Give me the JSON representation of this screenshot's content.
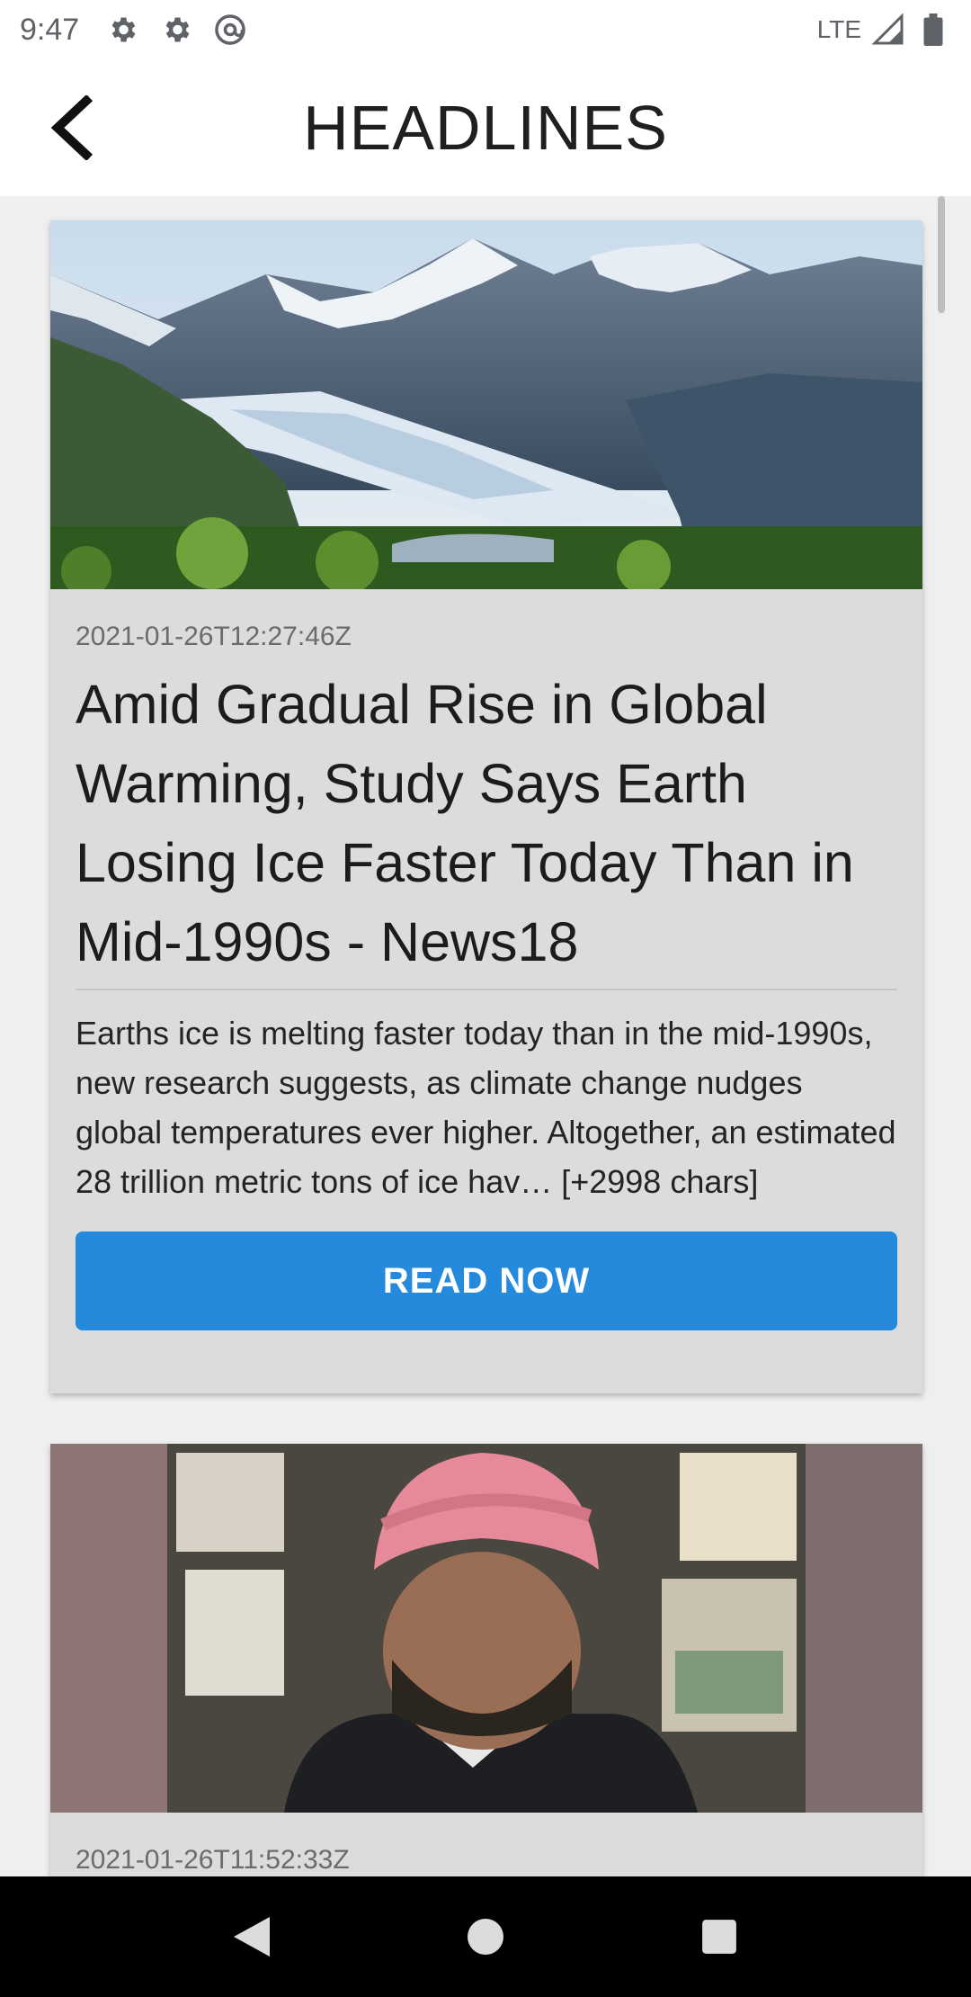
{
  "status_bar": {
    "time": "9:47",
    "network": "LTE",
    "left_icons": [
      "gear-icon",
      "gear-icon",
      "at-sign-icon"
    ],
    "right_icons": [
      "signal-icon",
      "battery-icon"
    ]
  },
  "app_bar": {
    "title": "HEADLINES",
    "back_icon": "back-arrow-icon"
  },
  "articles": [
    {
      "image": "glacier-mountains-photo",
      "date": "2021-01-26T12:27:46Z",
      "title": "Amid Gradual Rise in Global Warming, Study Says Earth Losing Ice Faster Today Than in Mid-1990s - News18",
      "description": "Earths ice is melting faster today than in the mid-1990s, new research suggests, as climate change nudges global temperatures ever higher. Altogether, an estimated 28 trillion metric tons of ice hav… [+2998 chars]",
      "button_label": "READ NOW"
    },
    {
      "image": "man-pink-turban-photo",
      "date": "2021-01-26T11:52:33Z"
    }
  ],
  "colors": {
    "accent": "#2589dc",
    "card_bg": "#dcdcdc",
    "page_bg": "#efefef"
  },
  "nav_bar": {
    "icons": [
      "back-triangle-icon",
      "home-circle-icon",
      "recents-square-icon"
    ]
  }
}
